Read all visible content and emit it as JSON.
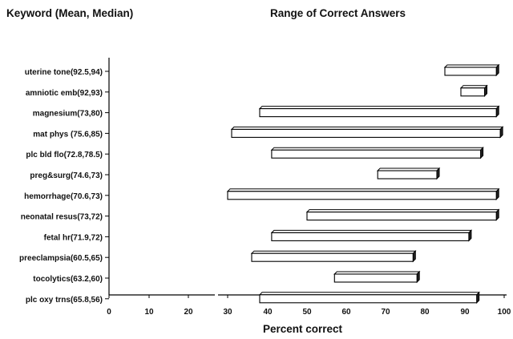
{
  "chart_data": {
    "type": "bar",
    "subtype": "floating-range",
    "left_header": "Keyword (Mean, Median)",
    "title": "Range of Correct Answers",
    "xlabel": "Percent correct",
    "ylabel": "",
    "xlim": [
      0,
      100
    ],
    "xticks": [
      0,
      10,
      20,
      30,
      40,
      50,
      60,
      70,
      80,
      90,
      100
    ],
    "categories": [
      "uterine tone(92.5,94)",
      "amniotic emb(92,93)",
      "magnesium(73,80)",
      "mat phys  (75.6,85)",
      "plc bld flo(72.8,78.5)",
      "preg&surg(74.6,73)",
      "hemorrhage(70.6,73)",
      "neonatal resus(73,72)",
      "fetal hr(71.9,72)",
      "preeclampsia(60.5,65)",
      "tocolytics(63.2,60)",
      "plc oxy trns(65.8,56)"
    ],
    "ranges": [
      [
        85,
        98
      ],
      [
        89,
        95
      ],
      [
        38,
        98
      ],
      [
        31,
        99
      ],
      [
        41,
        94
      ],
      [
        68,
        83
      ],
      [
        30,
        98
      ],
      [
        50,
        98
      ],
      [
        41,
        91
      ],
      [
        36,
        77
      ],
      [
        57,
        78
      ],
      [
        38,
        93
      ]
    ],
    "bar_color": "#ffffff",
    "edge_color": "#000000"
  }
}
